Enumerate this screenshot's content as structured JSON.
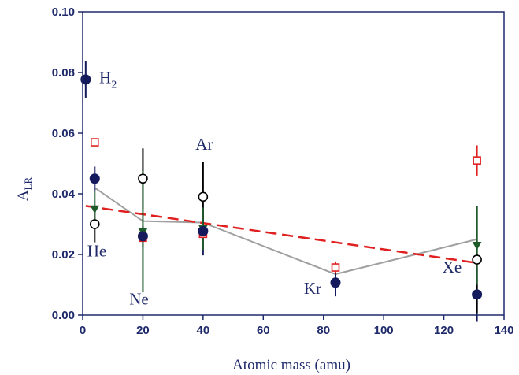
{
  "chart_data": {
    "type": "scatter",
    "xlabel": "Atomic mass (amu)",
    "ylabel_main": "A",
    "ylabel_sub": "LR",
    "xlim": [
      0,
      140
    ],
    "ylim": [
      0.0,
      0.1
    ],
    "xticks": [
      "0",
      "20",
      "40",
      "60",
      "80",
      "100",
      "120",
      "140"
    ],
    "yticks": [
      "0.00",
      "0.02",
      "0.04",
      "0.06",
      "0.08",
      "0.10"
    ],
    "grid": false,
    "colors": {
      "axis": "#1f2a6b",
      "filled_circle": "#141a5c",
      "open_circle": "#000000",
      "triangle": "#1f5a2a",
      "square": "#e02020",
      "gray_line": "#a0a0a0",
      "fit_line": "#e02020"
    },
    "series": [
      {
        "marker": "filled-circle",
        "points": [
          {
            "x": 1,
            "y": 0.0777,
            "err": 0.006
          },
          {
            "x": 4,
            "y": 0.045,
            "err": 0.004
          },
          {
            "x": 20,
            "y": 0.026,
            "err": 0.0035
          },
          {
            "x": 40,
            "y": 0.0277,
            "err": 0.008
          },
          {
            "x": 84,
            "y": 0.0107,
            "err": 0.0045
          },
          {
            "x": 131,
            "y": 0.0068,
            "err": 0.009
          }
        ]
      },
      {
        "marker": "open-circle",
        "points": [
          {
            "x": 4,
            "y": 0.03,
            "err": 0.006
          },
          {
            "x": 20,
            "y": 0.045,
            "err": 0.01
          },
          {
            "x": 40,
            "y": 0.039,
            "err": 0.0115
          },
          {
            "x": 131,
            "y": 0.0183,
            "err": 0.0175
          }
        ]
      },
      {
        "marker": "triangle-down",
        "points": [
          {
            "x": 4,
            "y": 0.035,
            "err": 0.006
          },
          {
            "x": 20,
            "y": 0.0275,
            "err": 0.02
          },
          {
            "x": 40,
            "y": 0.0285,
            "err": 0.007
          },
          {
            "x": 131,
            "y": 0.023,
            "err": 0.013
          }
        ]
      },
      {
        "marker": "open-square",
        "points": [
          {
            "x": 4,
            "y": 0.057,
            "err": 0.0
          },
          {
            "x": 20,
            "y": 0.0255,
            "err": 0.0
          },
          {
            "x": 40,
            "y": 0.0268,
            "err": 0.0
          },
          {
            "x": 84,
            "y": 0.0157,
            "err": 0.002
          },
          {
            "x": 131,
            "y": 0.051,
            "err": 0.005
          }
        ]
      }
    ],
    "connecting_line": {
      "x": [
        4,
        20,
        40,
        84,
        131
      ],
      "y": [
        0.042,
        0.031,
        0.0305,
        0.0135,
        0.025
      ]
    },
    "fit_line": {
      "x": [
        1,
        131
      ],
      "y": [
        0.036,
        0.0172
      ]
    },
    "annotations": [
      {
        "text": "H",
        "sub": "2",
        "x": 5.5,
        "y": 0.0765
      },
      {
        "text": "He",
        "x": 1.5,
        "y": 0.0193
      },
      {
        "text": "Ne",
        "x": 15.5,
        "y": 0.0035
      },
      {
        "text": "Ar",
        "x": 37.5,
        "y": 0.0545
      },
      {
        "text": "Kr",
        "x": 73.5,
        "y": 0.007
      },
      {
        "text": "Xe",
        "x": 119.5,
        "y": 0.014
      }
    ]
  }
}
